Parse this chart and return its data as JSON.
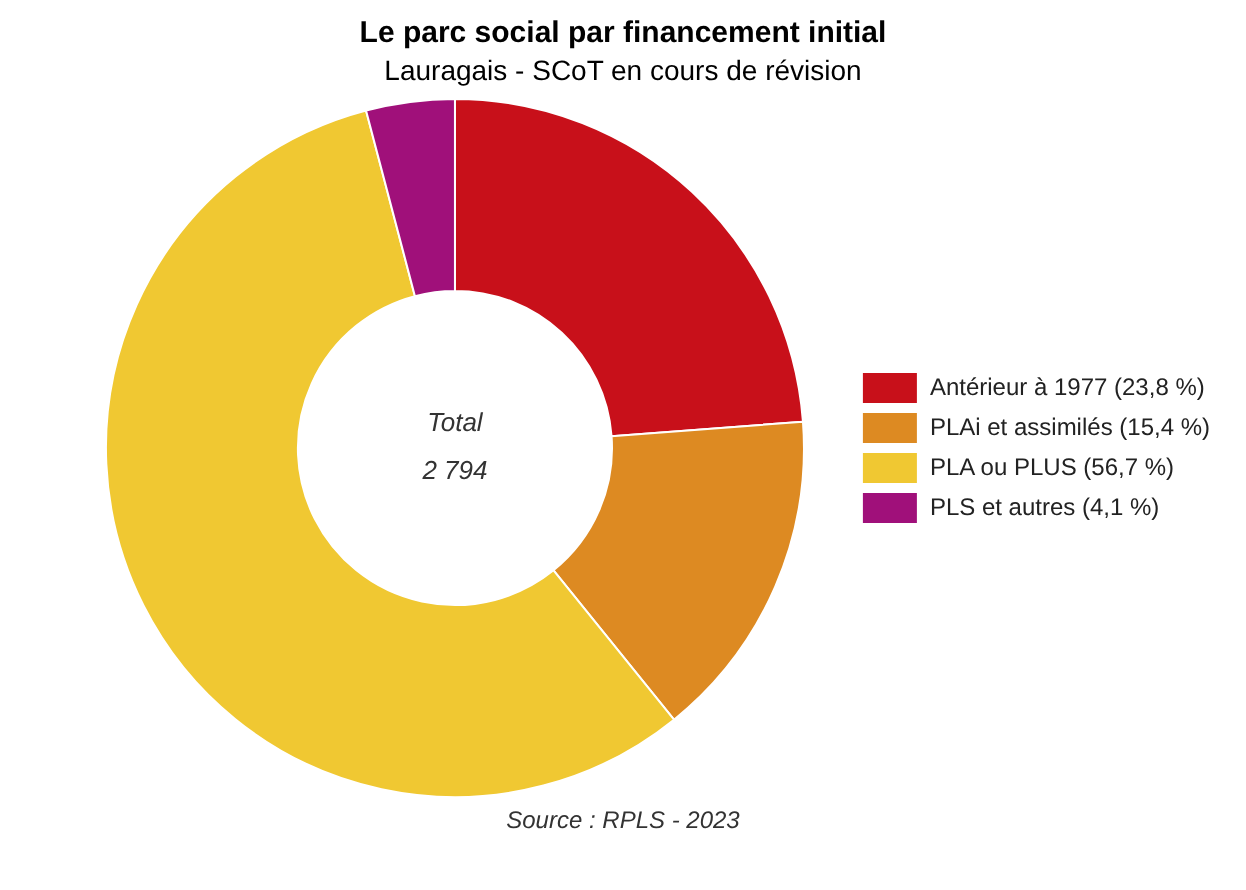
{
  "chart_data": {
    "type": "donut",
    "title": "Le parc social par financement initial",
    "subtitle": "Lauragais - SCoT en cours de révision",
    "categories": [
      "Antérieur à 1977 (23,8 %)",
      "PLAi et assimilés (15,4 %)",
      "PLA ou PLUS (56,7 %)",
      "PLS et autres (4,1 %)"
    ],
    "values": [
      23.8,
      15.4,
      56.7,
      4.1
    ],
    "colors": [
      "#c8101a",
      "#dd8a22",
      "#f0c832",
      "#a0107a"
    ],
    "legend": "right",
    "annotations": [
      "Total",
      "2 794",
      "Source : RPLS - 2023"
    ]
  }
}
